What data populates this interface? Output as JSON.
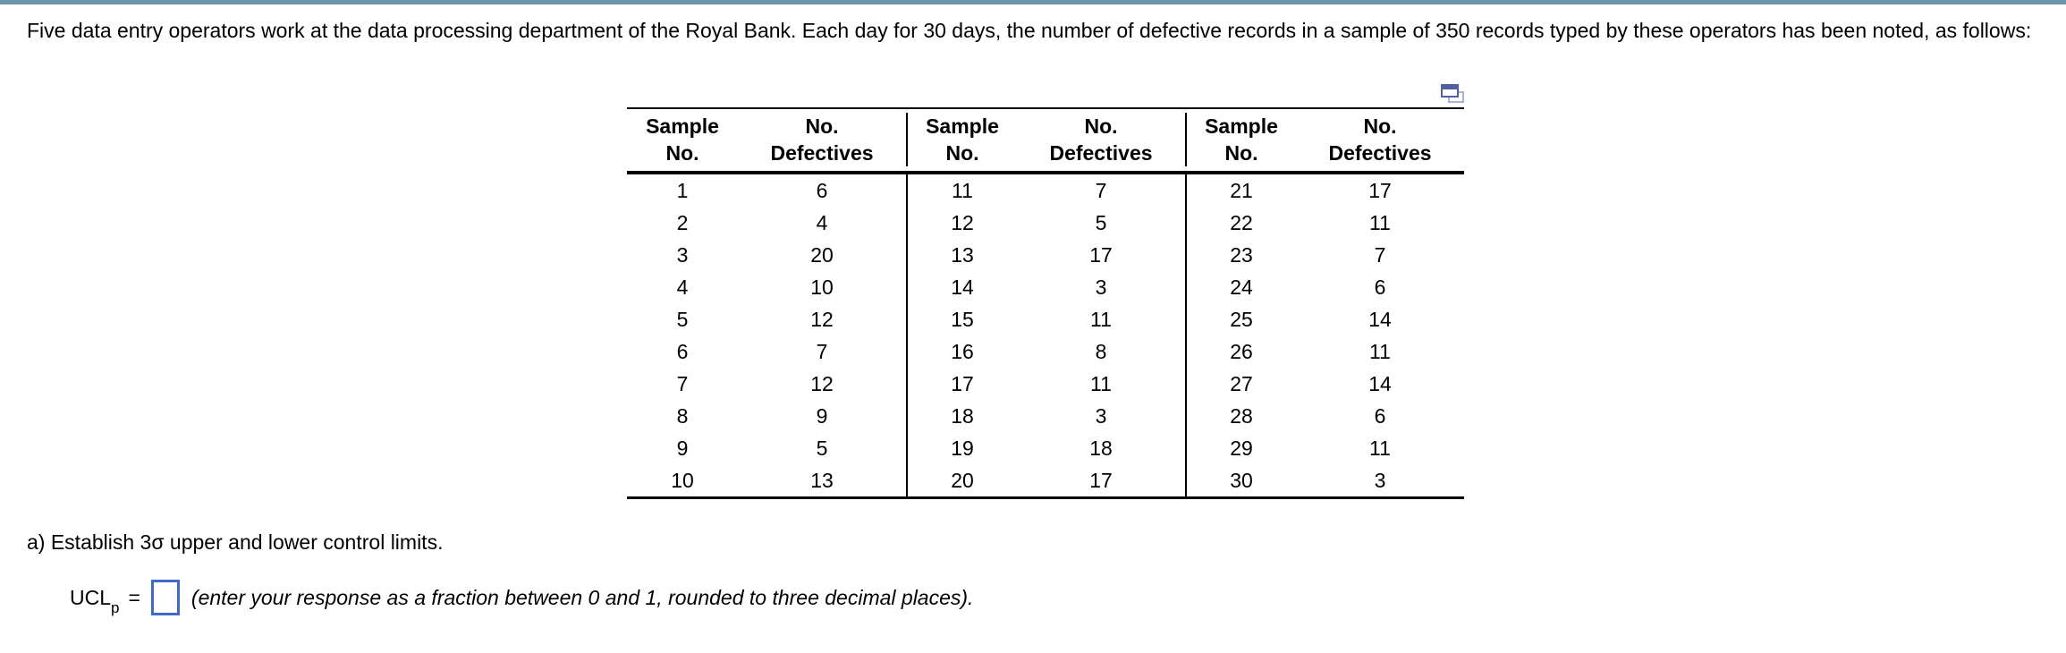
{
  "question": {
    "text": "Five data entry operators work at the data processing department of the Royal Bank. Each day for 30 days, the number of defective records in a sample of 350 records typed by these operators has been noted, as follows:"
  },
  "table": {
    "header": {
      "sample_line1": "Sample",
      "sample_line2": "No.",
      "defectives_line1": "No.",
      "defectives_line2": "Defectives"
    },
    "rows": [
      [
        1,
        6,
        11,
        7,
        21,
        17
      ],
      [
        2,
        4,
        12,
        5,
        22,
        11
      ],
      [
        3,
        20,
        13,
        17,
        23,
        7
      ],
      [
        4,
        10,
        14,
        3,
        24,
        6
      ],
      [
        5,
        12,
        15,
        11,
        25,
        14
      ],
      [
        6,
        7,
        16,
        8,
        26,
        11
      ],
      [
        7,
        12,
        17,
        11,
        27,
        14
      ],
      [
        8,
        9,
        18,
        3,
        28,
        6
      ],
      [
        9,
        5,
        19,
        18,
        29,
        11
      ],
      [
        10,
        13,
        20,
        17,
        30,
        3
      ]
    ]
  },
  "part_a": {
    "text": "a) Establish 3σ upper and lower control limits."
  },
  "answer": {
    "ucl_base": "UCL",
    "ucl_sub": "p",
    "equals": "=",
    "input_value": "",
    "hint": "(enter your response as a fraction between 0 and 1, rounded to three decimal places)."
  },
  "colors": {
    "top_bar": "#6f94ae",
    "input_border": "#4169c8",
    "icon_front": "#5060a5",
    "icon_back": "#a9b2d8",
    "table_rule": "#000000"
  }
}
